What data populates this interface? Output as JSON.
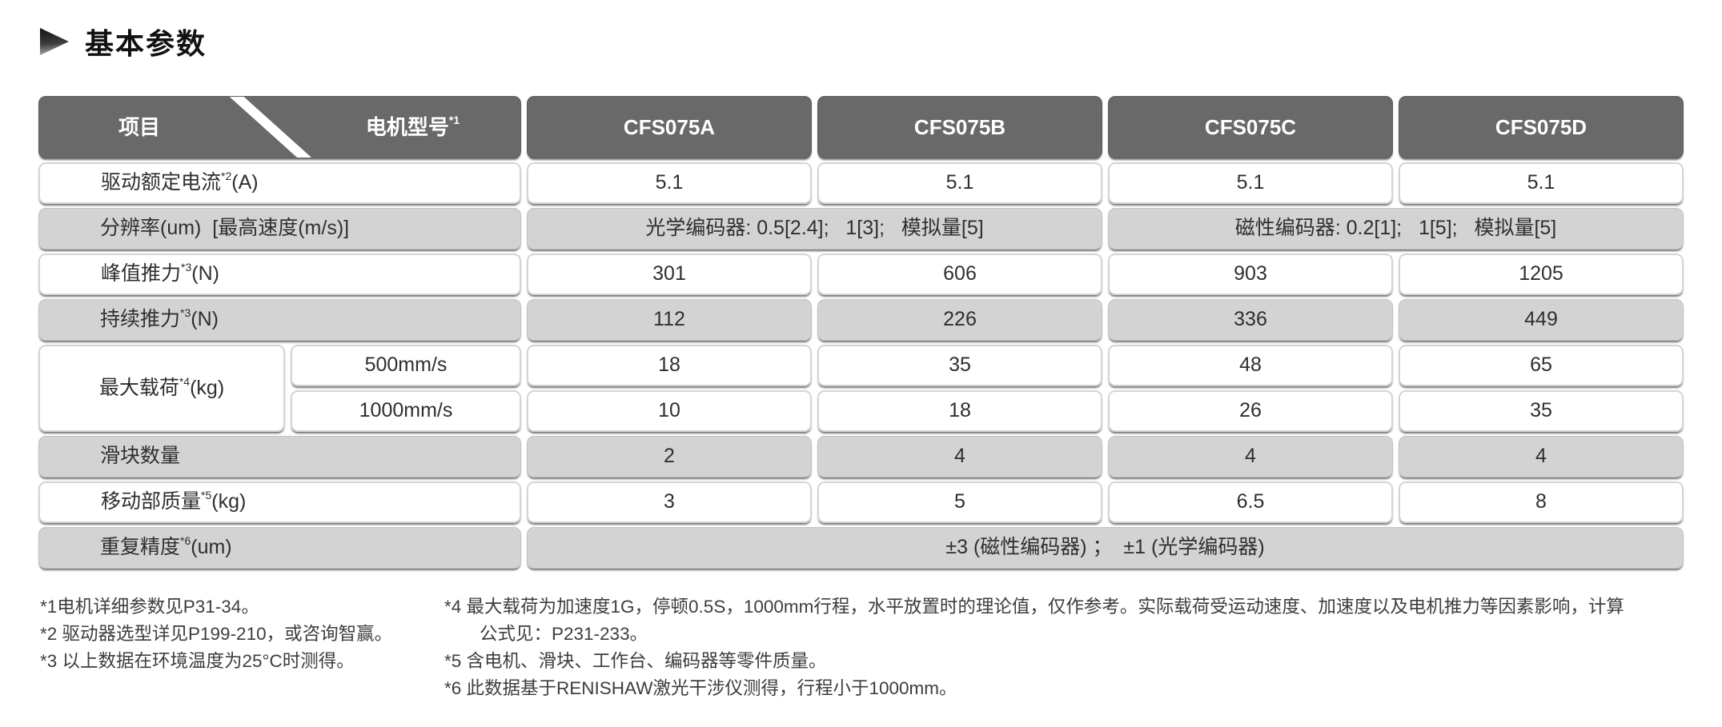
{
  "title": "基本参数",
  "table": {
    "corner": {
      "item": "项目",
      "model": "电机型号",
      "model_sup": "*1"
    },
    "models": [
      "CFS075A",
      "CFS075B",
      "CFS075C",
      "CFS075D"
    ],
    "rows": {
      "current": {
        "label": "驱动额定电流",
        "sup": "*2",
        "unit": "(A)",
        "values": [
          "5.1",
          "5.1",
          "5.1",
          "5.1"
        ]
      },
      "resolution": {
        "label": "分辨率(um)  [最高速度(m/s)]",
        "optical": "光学编码器: 0.5[2.4];   1[3];   模拟量[5]",
        "magnetic": "磁性编码器: 0.2[1];   1[5];   模拟量[5]"
      },
      "peak_force": {
        "label": "峰值推力",
        "sup": "*3",
        "unit": "(N)",
        "values": [
          "301",
          "606",
          "903",
          "1205"
        ]
      },
      "cont_force": {
        "label": "持续推力",
        "sup": "*3",
        "unit": "(N)",
        "values": [
          "112",
          "226",
          "336",
          "449"
        ]
      },
      "max_load": {
        "label": "最大载荷",
        "sup": "*4",
        "unit": "(kg)",
        "speed_500": "500mm/s",
        "values_500": [
          "18",
          "35",
          "48",
          "65"
        ],
        "speed_1000": "1000mm/s",
        "values_1000": [
          "10",
          "18",
          "26",
          "35"
        ]
      },
      "sliders": {
        "label": "滑块数量",
        "values": [
          "2",
          "4",
          "4",
          "4"
        ]
      },
      "moving_mass": {
        "label": "移动部质量",
        "sup": "*5",
        "unit": "(kg)",
        "values": [
          "3",
          "5",
          "6.5",
          "8"
        ]
      },
      "repeatability": {
        "label": "重复精度",
        "sup": "*6",
        "unit": "(um)",
        "value": "±3 (磁性编码器) ；  ±1 (光学编码器)"
      }
    }
  },
  "footnotes": {
    "left": [
      "*1电机详细参数见P31-34。",
      "*2 驱动器选型详见P199-210，或咨询智赢。",
      "*3 以上数据在环境温度为25°C时测得。"
    ],
    "right": {
      "n4_line1": "*4 最大载荷为加速度1G，停顿0.5S，1000mm行程，水平放置时的理论值，仅作参考。实际载荷受运动速度、加速度以及电机推力等因素影响，计算",
      "n4_line2": "公式见：P231-233。",
      "n5": "*5 含电机、滑块、工作台、编码器等零件质量。",
      "n6": "*6 此数据基于RENISHAW激光干涉仪测得，行程小于1000mm。"
    }
  },
  "colors": {
    "header_bg": "#696969",
    "row_gray": "#d3d3d3",
    "row_white": "#ffffff",
    "text": "#2f2f2f"
  }
}
